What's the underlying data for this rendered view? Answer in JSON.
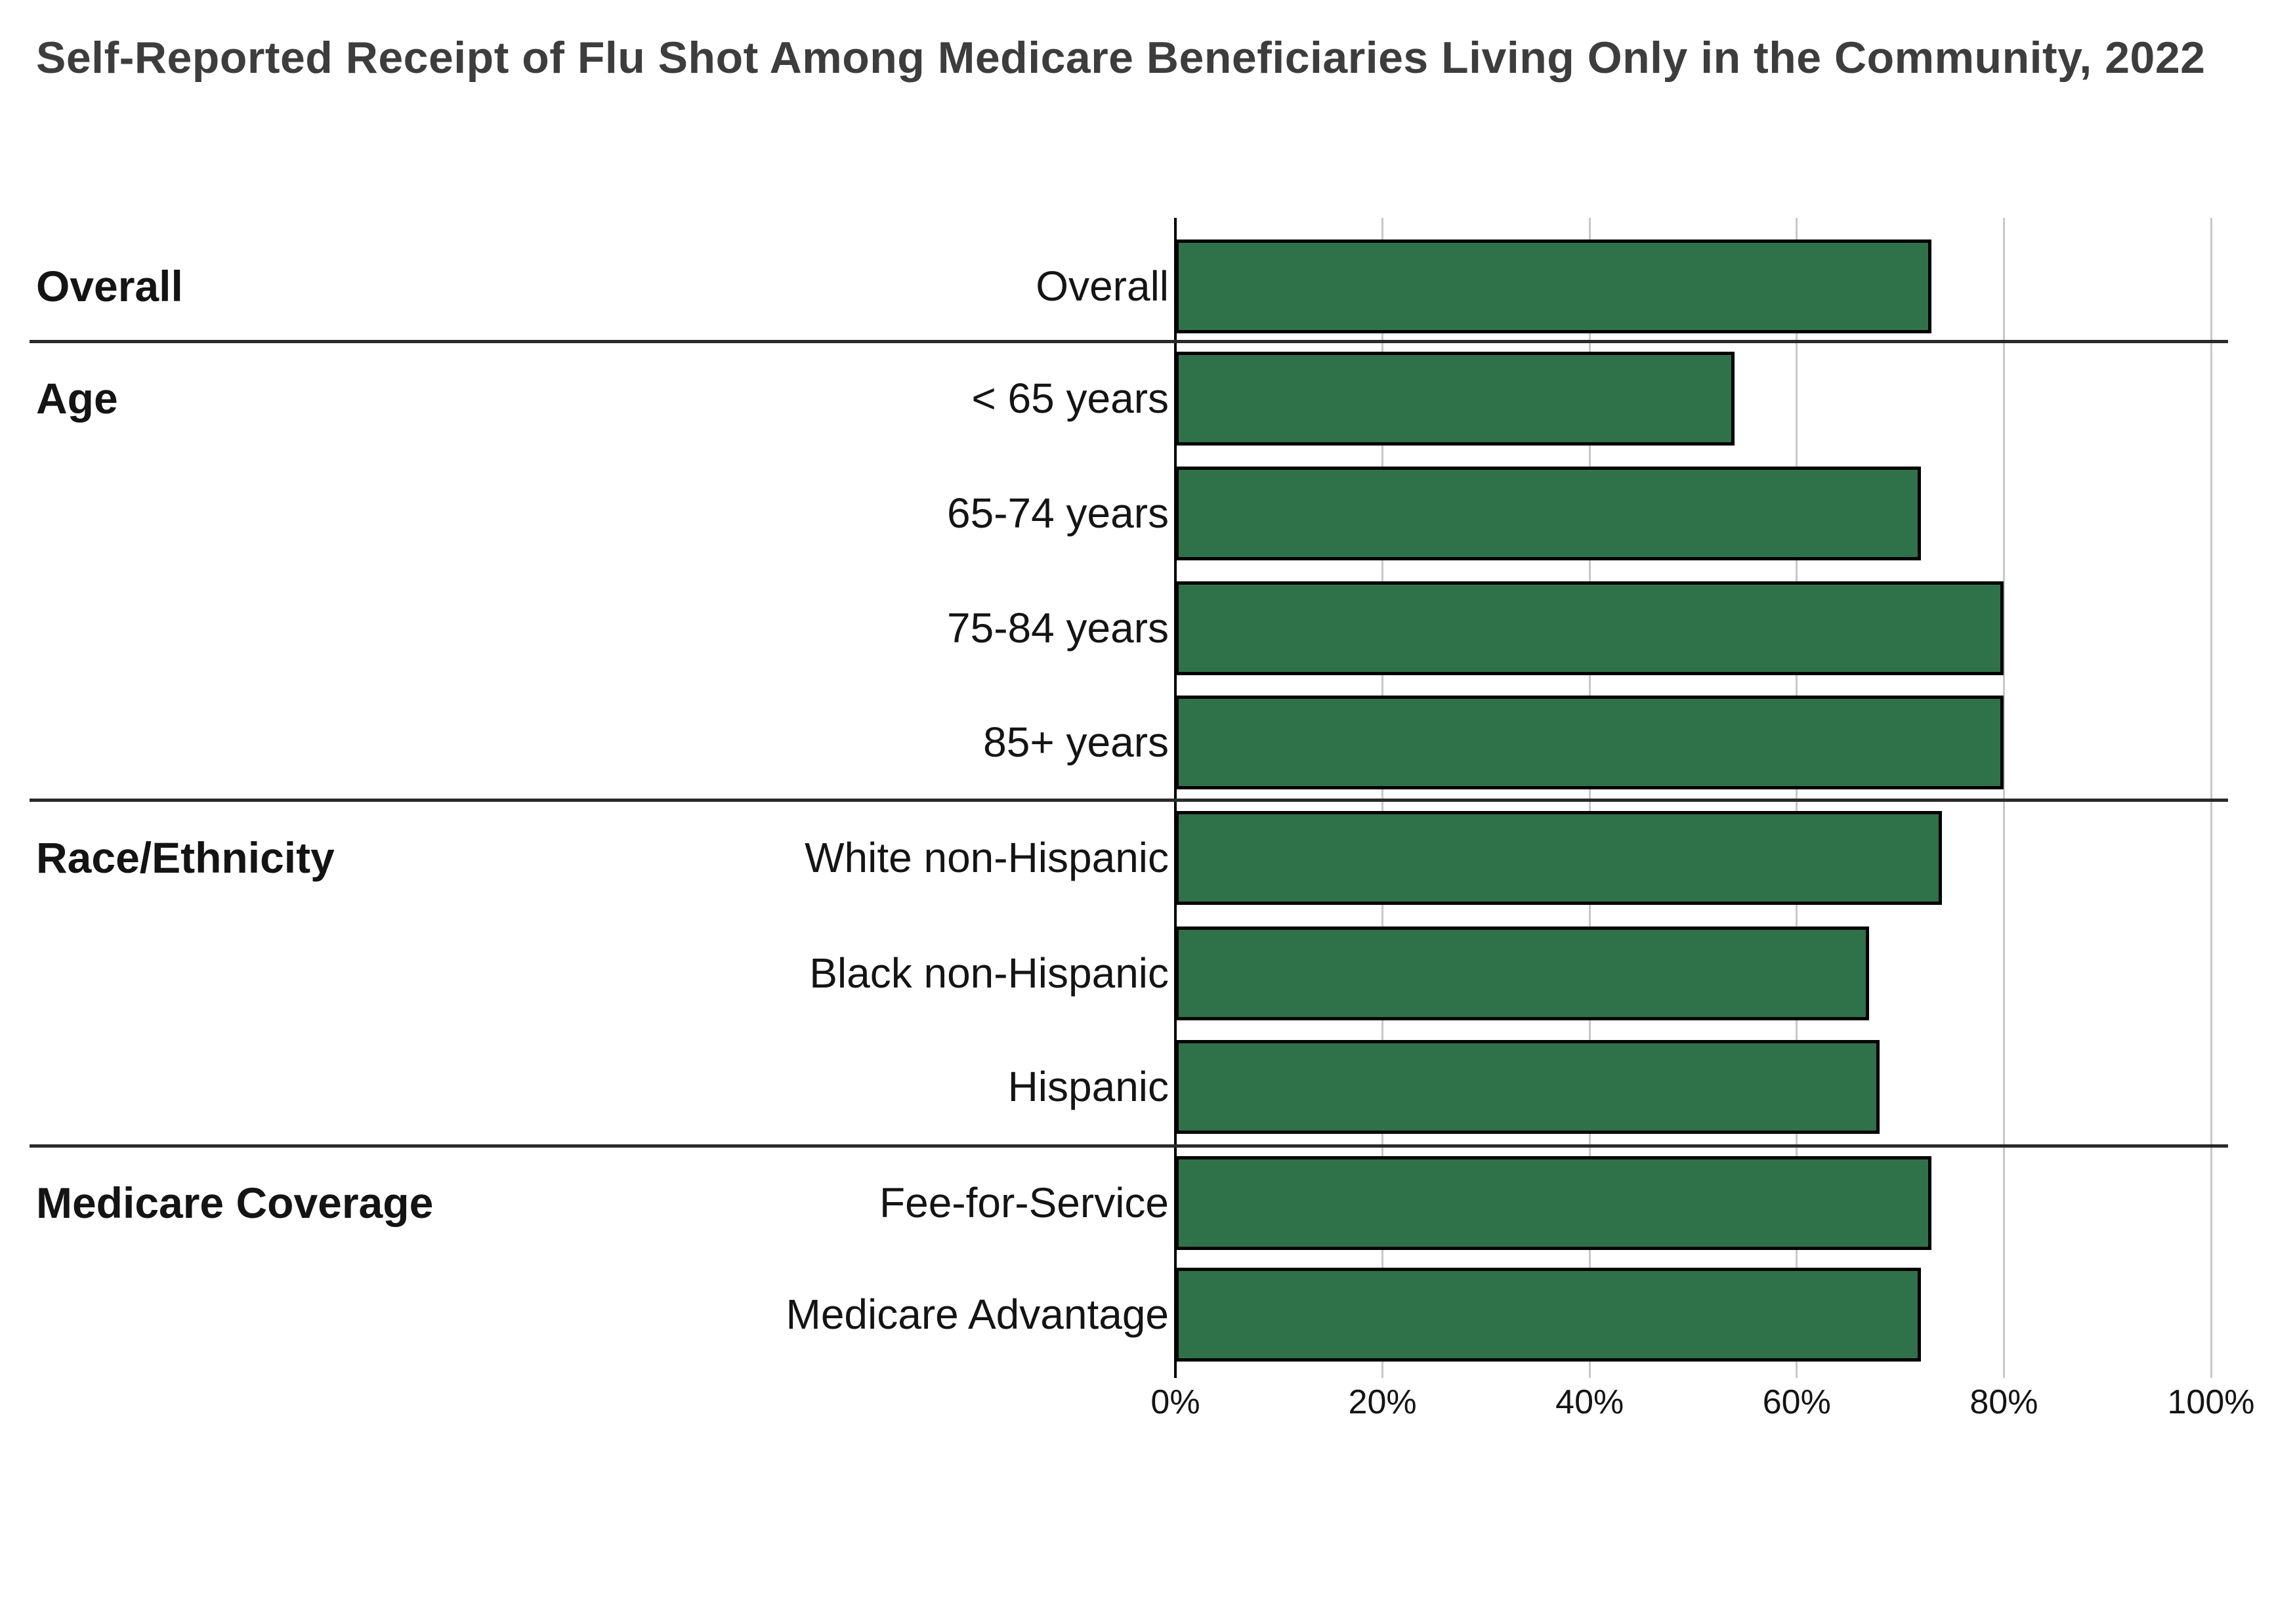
{
  "title": "Self-Reported Receipt of Flu Shot Among Medicare Beneficiaries Living Only in the Community, 2022",
  "colors": {
    "bar_fill": "#2f7249",
    "bar_outline": "#000000",
    "gridline": "#c8c8c8",
    "zero_axis": "#000000",
    "separator": "#2a2a2a",
    "title_text": "#3d3d3d",
    "label_text": "#141414",
    "background": "#ffffff"
  },
  "chart_data": {
    "type": "bar",
    "orientation": "horizontal",
    "title": "Self-Reported Receipt of Flu Shot Among Medicare Beneficiaries Living Only in the Community, 2022",
    "unit": "%",
    "x_axis": {
      "min": 0,
      "max": 100,
      "ticks": [
        "0%",
        "20%",
        "40%",
        "60%",
        "80%",
        "100%"
      ],
      "grid": true
    },
    "legend": "none",
    "groups": [
      {
        "label": "Overall",
        "rows": [
          {
            "label": "Overall",
            "value": 73
          }
        ]
      },
      {
        "label": "Age",
        "rows": [
          {
            "label": "< 65 years",
            "value": 54
          },
          {
            "label": "65-74 years",
            "value": 72
          },
          {
            "label": "75-84 years",
            "value": 80
          },
          {
            "label": "85+ years",
            "value": 80
          }
        ]
      },
      {
        "label": "Race/Ethnicity",
        "rows": [
          {
            "label": "White non-Hispanic",
            "value": 74
          },
          {
            "label": "Black non-Hispanic",
            "value": 67
          },
          {
            "label": "Hispanic",
            "value": 68
          }
        ]
      },
      {
        "label": "Medicare Coverage",
        "rows": [
          {
            "label": "Fee-for-Service",
            "value": 73
          },
          {
            "label": "Medicare Advantage",
            "value": 72
          }
        ]
      }
    ]
  }
}
